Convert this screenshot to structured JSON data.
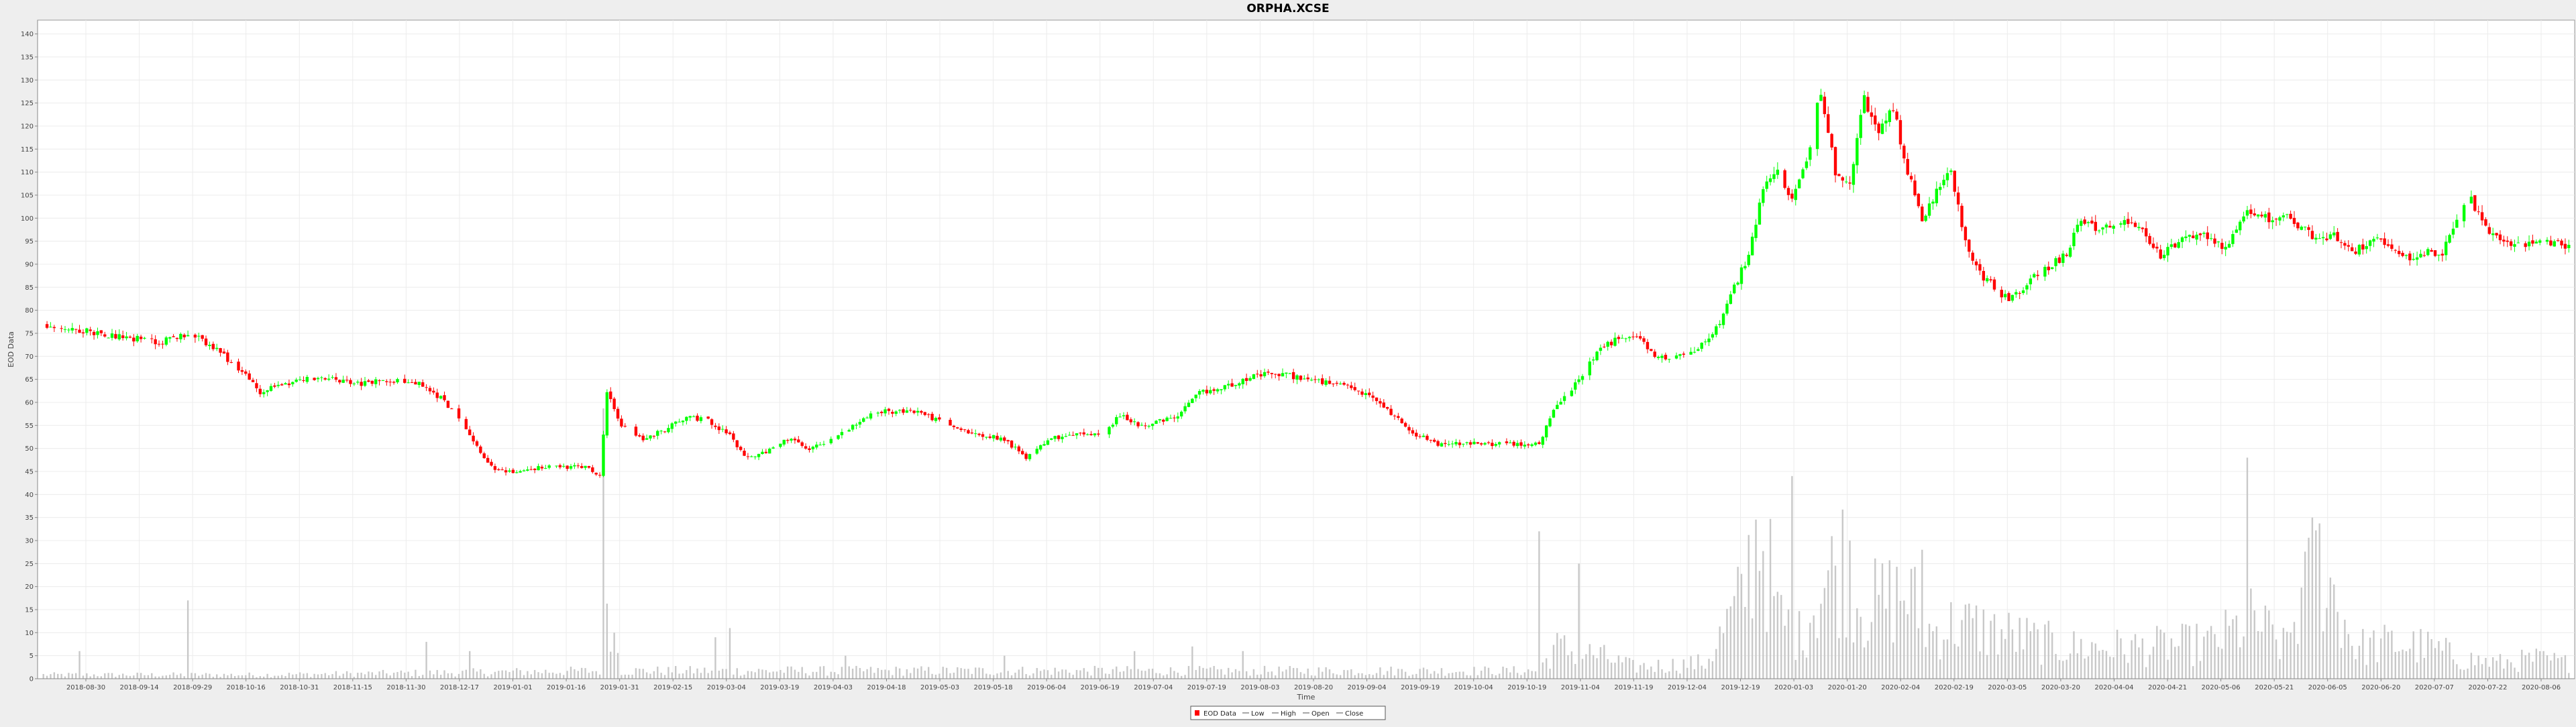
{
  "chart_data": {
    "type": "candlestick",
    "title": "ORPHA.XCSE",
    "xlabel": "Time",
    "ylabel": "EOD Data",
    "ylim": [
      0,
      143
    ],
    "y_ticks": [
      0,
      5,
      10,
      15,
      20,
      25,
      30,
      35,
      40,
      45,
      50,
      55,
      60,
      65,
      70,
      75,
      80,
      85,
      90,
      95,
      100,
      105,
      110,
      115,
      120,
      125,
      130,
      135,
      140
    ],
    "x_ticks": [
      "2018-08-30",
      "2018-09-14",
      "2018-09-29",
      "2018-10-16",
      "2018-10-31",
      "2018-11-15",
      "2018-11-30",
      "2018-12-17",
      "2019-01-01",
      "2019-01-16",
      "2019-01-31",
      "2019-02-15",
      "2019-03-04",
      "2019-03-19",
      "2019-04-03",
      "2019-04-18",
      "2019-05-03",
      "2019-05-18",
      "2019-06-04",
      "2019-06-19",
      "2019-07-04",
      "2019-07-19",
      "2019-08-03",
      "2019-08-20",
      "2019-09-04",
      "2019-09-19",
      "2019-10-04",
      "2019-10-19",
      "2019-11-04",
      "2019-11-19",
      "2019-12-04",
      "2019-12-19",
      "2020-01-03",
      "2020-01-20",
      "2020-02-04",
      "2020-02-19",
      "2020-03-05",
      "2020-03-20",
      "2020-04-04",
      "2020-04-21",
      "2020-05-06",
      "2020-05-21",
      "2020-06-05",
      "2020-06-20",
      "2020-07-07",
      "2020-07-22",
      "2020-08-06"
    ],
    "legend": [
      "EOD Data",
      "Low",
      "High",
      "Open",
      "Close"
    ],
    "legend_position": "bottom-center",
    "grid": true,
    "up_color": "#00ff00",
    "down_color": "#ff0000",
    "volume_color": "#c8c8c8",
    "price_anchors": [
      [
        0,
        77
      ],
      [
        8,
        76
      ],
      [
        16,
        75
      ],
      [
        24,
        74
      ],
      [
        32,
        73
      ],
      [
        40,
        75
      ],
      [
        45,
        73
      ],
      [
        50,
        70
      ],
      [
        56,
        66
      ],
      [
        60,
        62
      ],
      [
        66,
        64
      ],
      [
        72,
        65
      ],
      [
        80,
        65
      ],
      [
        88,
        64
      ],
      [
        96,
        65
      ],
      [
        104,
        64
      ],
      [
        110,
        61
      ],
      [
        116,
        56
      ],
      [
        122,
        48
      ],
      [
        126,
        45
      ],
      [
        132,
        45
      ],
      [
        138,
        46
      ],
      [
        146,
        46
      ],
      [
        150,
        46
      ],
      [
        154,
        44
      ],
      [
        156,
        62
      ],
      [
        160,
        55
      ],
      [
        166,
        52
      ],
      [
        172,
        54
      ],
      [
        178,
        57
      ],
      [
        184,
        56
      ],
      [
        190,
        53
      ],
      [
        194,
        48
      ],
      [
        200,
        49
      ],
      [
        206,
        52
      ],
      [
        212,
        50
      ],
      [
        218,
        52
      ],
      [
        224,
        55
      ],
      [
        230,
        58
      ],
      [
        236,
        58
      ],
      [
        242,
        58
      ],
      [
        248,
        56
      ],
      [
        254,
        54
      ],
      [
        260,
        53
      ],
      [
        266,
        52
      ],
      [
        272,
        48
      ],
      [
        278,
        52
      ],
      [
        284,
        53
      ],
      [
        292,
        53
      ],
      [
        298,
        57
      ],
      [
        304,
        55
      ],
      [
        310,
        56
      ],
      [
        314,
        57
      ],
      [
        320,
        62
      ],
      [
        326,
        63
      ],
      [
        332,
        65
      ],
      [
        338,
        66
      ],
      [
        344,
        66
      ],
      [
        350,
        65
      ],
      [
        356,
        64
      ],
      [
        362,
        63
      ],
      [
        368,
        61
      ],
      [
        374,
        57
      ],
      [
        380,
        53
      ],
      [
        386,
        51
      ],
      [
        392,
        51
      ],
      [
        398,
        51
      ],
      [
        404,
        51
      ],
      [
        410,
        51
      ],
      [
        414,
        51
      ],
      [
        418,
        58
      ],
      [
        424,
        64
      ],
      [
        430,
        71
      ],
      [
        436,
        74
      ],
      [
        442,
        74
      ],
      [
        446,
        70
      ],
      [
        450,
        70
      ],
      [
        456,
        71
      ],
      [
        460,
        73
      ],
      [
        464,
        77
      ],
      [
        468,
        85
      ],
      [
        472,
        92
      ],
      [
        476,
        106
      ],
      [
        480,
        110
      ],
      [
        484,
        104
      ],
      [
        488,
        112
      ],
      [
        492,
        128
      ],
      [
        496,
        110
      ],
      [
        500,
        108
      ],
      [
        504,
        126
      ],
      [
        508,
        118
      ],
      [
        512,
        124
      ],
      [
        516,
        110
      ],
      [
        520,
        100
      ],
      [
        524,
        106
      ],
      [
        528,
        110
      ],
      [
        532,
        95
      ],
      [
        536,
        88
      ],
      [
        540,
        85
      ],
      [
        544,
        82
      ],
      [
        548,
        85
      ],
      [
        552,
        88
      ],
      [
        556,
        90
      ],
      [
        560,
        92
      ],
      [
        564,
        100
      ],
      [
        568,
        98
      ],
      [
        574,
        99
      ],
      [
        580,
        98
      ],
      [
        586,
        92
      ],
      [
        592,
        95
      ],
      [
        598,
        97
      ],
      [
        604,
        93
      ],
      [
        610,
        101
      ],
      [
        616,
        100
      ],
      [
        622,
        100
      ],
      [
        628,
        96
      ],
      [
        634,
        96
      ],
      [
        640,
        93
      ],
      [
        646,
        96
      ],
      [
        652,
        93
      ],
      [
        656,
        91
      ],
      [
        660,
        93
      ],
      [
        664,
        92
      ],
      [
        668,
        100
      ],
      [
        672,
        104
      ],
      [
        676,
        98
      ],
      [
        680,
        95
      ],
      [
        686,
        94
      ],
      [
        692,
        95
      ],
      [
        698,
        94
      ]
    ],
    "volume_anchors": [
      [
        0,
        1
      ],
      [
        60,
        1
      ],
      [
        154,
        2
      ],
      [
        155,
        46
      ],
      [
        156,
        24
      ],
      [
        157,
        19
      ],
      [
        160,
        2
      ],
      [
        414,
        2
      ],
      [
        418,
        8
      ],
      [
        430,
        6
      ],
      [
        440,
        3
      ],
      [
        460,
        4
      ],
      [
        470,
        20
      ],
      [
        475,
        40
      ],
      [
        480,
        16
      ],
      [
        486,
        11
      ],
      [
        492,
        23
      ],
      [
        498,
        30
      ],
      [
        504,
        18
      ],
      [
        510,
        20
      ],
      [
        516,
        22
      ],
      [
        522,
        12
      ],
      [
        530,
        14
      ],
      [
        540,
        12
      ],
      [
        560,
        8
      ],
      [
        580,
        8
      ],
      [
        600,
        9
      ],
      [
        612,
        15
      ],
      [
        620,
        8
      ],
      [
        630,
        30
      ],
      [
        640,
        8
      ],
      [
        650,
        9
      ],
      [
        660,
        8
      ],
      [
        670,
        5
      ],
      [
        680,
        4
      ],
      [
        690,
        5
      ],
      [
        698,
        4
      ]
    ],
    "volume_spikes": [
      [
        10,
        6
      ],
      [
        40,
        17
      ],
      [
        106,
        8
      ],
      [
        118,
        6
      ],
      [
        158,
        10
      ],
      [
        186,
        9
      ],
      [
        190,
        11
      ],
      [
        222,
        5
      ],
      [
        266,
        5
      ],
      [
        302,
        6
      ],
      [
        318,
        7
      ],
      [
        332,
        6
      ],
      [
        414,
        32
      ],
      [
        425,
        25
      ],
      [
        484,
        44
      ],
      [
        500,
        30
      ],
      [
        520,
        28
      ],
      [
        610,
        48
      ],
      [
        628,
        35
      ]
    ]
  }
}
